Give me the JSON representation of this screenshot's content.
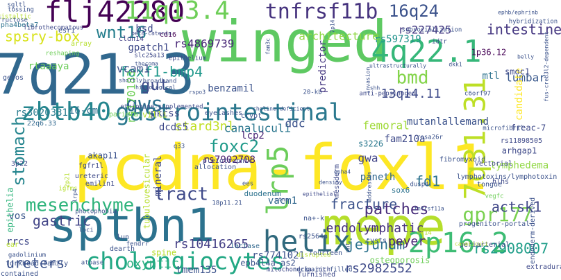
{
  "words": [
    {
      "text": "pcdna-foxl1",
      "color": "#fde725"
    },
    {
      "text": "winged",
      "color": "#5ec962"
    },
    {
      "text": "7q21.3",
      "color": "#31688e"
    },
    {
      "text": "mepe",
      "color": "#b5de2b"
    },
    {
      "text": "sptbn1",
      "color": "#2c728e"
    },
    {
      "text": "flj42280",
      "color": "#440154"
    },
    {
      "text": "gastrointestinal",
      "color": "#2a788e"
    },
    {
      "text": "4q22.1",
      "color": "#35b779"
    },
    {
      "text": "11q13.4",
      "color": "#6ece58"
    },
    {
      "text": "helix",
      "color": "#30697d"
    },
    {
      "text": "7q31.31",
      "color": "#bddf26"
    },
    {
      "text": "lrp5",
      "color": "#6ccd5a"
    },
    {
      "text": "2p16.2",
      "color": "#3dbc74"
    },
    {
      "text": "zbtb40",
      "color": "#24868e"
    },
    {
      "text": "cholangiocytes",
      "color": "#22a884"
    },
    {
      "text": "tnfrsf11b",
      "color": "#46337e"
    },
    {
      "text": "mesenchyme",
      "color": "#2fb47c"
    },
    {
      "text": "gws",
      "color": "#2d708e"
    },
    {
      "text": "gpr177",
      "color": "#7ad151"
    },
    {
      "text": "wnt16",
      "color": "#277f8e"
    },
    {
      "text": "16q24",
      "color": "#3b528b"
    },
    {
      "text": "stomach",
      "color": "#25858e"
    },
    {
      "text": "foxc2",
      "color": "#1f9a8a"
    },
    {
      "text": "tract",
      "color": "#3e4989"
    },
    {
      "text": "gut",
      "color": "#3e4a89"
    },
    {
      "text": "patches",
      "color": "#472c7a"
    },
    {
      "text": "bmd",
      "color": "#84d44b"
    },
    {
      "text": "jejunum",
      "color": "#2c728e"
    },
    {
      "text": "rs2908007",
      "color": "#1f9e89"
    },
    {
      "text": "endolymphatic",
      "color": "#46327e"
    },
    {
      "text": "fracture",
      "color": "#3b528b"
    },
    {
      "text": "actsk1",
      "color": "#404688"
    },
    {
      "text": "ureters",
      "color": "#3b528b"
    },
    {
      "text": "oxyntic",
      "color": "#29af7f"
    },
    {
      "text": "peyer",
      "color": "#482475"
    },
    {
      "text": "gastric",
      "color": "#414487"
    },
    {
      "text": "rs10416265",
      "color": "#433e85"
    },
    {
      "text": "fd1",
      "color": "#2c728e"
    },
    {
      "text": "spsry-box",
      "color": "#d8e219"
    },
    {
      "text": "intestine",
      "color": "#453781"
    },
    {
      "text": "foxf1-bmp4",
      "color": "#1f988b"
    },
    {
      "text": "13q14.11",
      "color": "#3e4a89"
    },
    {
      "text": "rs170183",
      "color": "#6ece58"
    },
    {
      "text": "stard3nl",
      "color": "#c0df25"
    },
    {
      "text": "rs4869739",
      "color": "#482777"
    },
    {
      "text": "rs597319",
      "color": "#20928c"
    },
    {
      "text": "rs2982552",
      "color": "#3e4a89"
    },
    {
      "text": "canaluculi",
      "color": "#2a768e"
    },
    {
      "text": "architecture",
      "color": "#8fd744"
    },
    {
      "text": "rs227425",
      "color": "#443a83"
    },
    {
      "text": "femoral",
      "color": "#a0da39"
    },
    {
      "text": "lumbar",
      "color": "#38588c"
    },
    {
      "text": "vcam1",
      "color": "#3c4f8a"
    },
    {
      "text": "gwa",
      "color": "#414487"
    },
    {
      "text": "ddc",
      "color": "#3b528b"
    },
    {
      "text": "mutanlallemand",
      "color": "#3b528b"
    },
    {
      "text": "lymphedema",
      "color": "#90d743"
    },
    {
      "text": "vacm1",
      "color": "#31688e"
    },
    {
      "text": "rs3020331",
      "color": "#287c8e"
    },
    {
      "text": "16-cm",
      "color": "#2d708e"
    },
    {
      "text": "predictor",
      "color": "#453781"
    },
    {
      "text": "mtl",
      "color": "#2c728e"
    },
    {
      "text": "tmem135",
      "color": "#3b528b"
    },
    {
      "text": "rs7741021",
      "color": "#3b528b"
    },
    {
      "text": "paneth",
      "color": "#31688e"
    },
    {
      "text": "rrcs",
      "color": "#3f4889"
    },
    {
      "text": "rtaaaya",
      "color": "#6ccd5a"
    },
    {
      "text": "fam210a",
      "color": "#3e4989"
    },
    {
      "text": "dcdc5",
      "color": "#3e4989"
    },
    {
      "text": "benzamil",
      "color": "#3b528b"
    },
    {
      "text": "pkcss",
      "color": "#3f4788"
    },
    {
      "text": "rs7902708",
      "color": "#481b6d"
    },
    {
      "text": "vos",
      "color": "#39558c"
    },
    {
      "text": "gpatch1",
      "color": "#3e4989"
    },
    {
      "text": "mineral",
      "color": "#3e4989"
    },
    {
      "text": "lcp2",
      "color": "#482475"
    },
    {
      "text": "freac-7",
      "color": "#3e4989"
    },
    {
      "text": "tubulovesicular",
      "color": "#b5de2b"
    },
    {
      "text": "candidate",
      "color": "#fde725"
    },
    {
      "text": "s3226",
      "color": "#2a788e"
    },
    {
      "text": "epb4l4a-as2",
      "color": "#3b528b"
    },
    {
      "text": "epithelia",
      "color": "#2fb47c"
    },
    {
      "text": "bsd",
      "color": "#3e4989"
    },
    {
      "text": "villi",
      "color": "#b5de2b"
    },
    {
      "text": "cldn14",
      "color": "#433e85"
    },
    {
      "text": "akap11",
      "color": "#3b528b"
    },
    {
      "text": "rs11898505",
      "color": "#3e4989"
    },
    {
      "text": "arhgap1",
      "color": "#3e4989"
    },
    {
      "text": "smoc1",
      "color": "#3e4989"
    },
    {
      "text": "1p36.12",
      "color": "#440154"
    },
    {
      "text": "gefos",
      "color": "#3b528b"
    },
    {
      "text": "esr1",
      "color": "#3b528b"
    },
    {
      "text": "cd16",
      "color": "#440154"
    },
    {
      "text": "sgltl",
      "color": "#3b528b"
    },
    {
      "text": "c6orf97",
      "color": "#3b528b"
    },
    {
      "text": "subsocialization",
      "color": "#3b528b"
    },
    {
      "text": "idtr",
      "color": "#3b528b"
    },
    {
      "text": "duodenum",
      "color": "#2c728e"
    },
    {
      "text": "sox6",
      "color": "#2c728e"
    },
    {
      "text": "fourteen",
      "color": "#3b528b"
    },
    {
      "text": "fgfr1l",
      "color": "#3e4989"
    },
    {
      "text": "ureteric",
      "color": "#3e4989"
    },
    {
      "text": "emilin1",
      "color": "#3e4989"
    },
    {
      "text": "gadolinium",
      "color": "#3b528b"
    },
    {
      "text": "spine",
      "color": "#b5de2b"
    },
    {
      "text": "lun",
      "color": "#3b528b"
    },
    {
      "text": "dearth",
      "color": "#3b528b"
    },
    {
      "text": "lactase",
      "color": "#31688e"
    },
    {
      "text": "osteoporosis",
      "color": "#6ece58"
    },
    {
      "text": "extradural",
      "color": "#3e4989"
    },
    {
      "text": "contained",
      "color": "#3b528b"
    },
    {
      "text": "furnished",
      "color": "#3e4989"
    },
    {
      "text": "periarterial",
      "color": "#3e4989"
    },
    {
      "text": "endoderm-derived",
      "color": "#3b528b"
    },
    {
      "text": "tongue",
      "color": "#3b528b"
    },
    {
      "text": "vectorial",
      "color": "#3e4989"
    },
    {
      "text": "hlhs",
      "color": "#3e4989"
    },
    {
      "text": "cysts",
      "color": "#3b528b"
    },
    {
      "text": "mesoderm",
      "color": "#3e4989"
    },
    {
      "text": "allocation",
      "color": "#3b528b"
    },
    {
      "text": "pleiotrophic",
      "color": "#3e4989"
    },
    {
      "text": "crypt",
      "color": "#3b528b"
    },
    {
      "text": "parietal",
      "color": "#6ece58"
    },
    {
      "text": "eyelashes",
      "color": "#3b528b"
    },
    {
      "text": "tossing",
      "color": "#3b528b"
    },
    {
      "text": "alpha4beta7",
      "color": "#2c728e"
    },
    {
      "text": "fibrothecomatous",
      "color": "#3e4989"
    },
    {
      "text": "array",
      "color": "#b5de2b"
    },
    {
      "text": "reshaping",
      "color": "#6ece58"
    },
    {
      "text": "epithelium",
      "color": "#3e4989"
    },
    {
      "text": "broadband",
      "color": "#3b528b"
    },
    {
      "text": "20-kb",
      "color": "#3b528b"
    },
    {
      "text": "anti-pepsinogen",
      "color": "#3e4989"
    },
    {
      "text": "ethionine-supplemented",
      "color": "#3e4989"
    },
    {
      "text": "22q6.33",
      "color": "#31688e"
    },
    {
      "text": "ear",
      "color": "#b5de2b"
    },
    {
      "text": "q33",
      "color": "#3b528b"
    },
    {
      "text": "3p22",
      "color": "#3e4989"
    },
    {
      "text": "fibromyxoid",
      "color": "#3b528b"
    },
    {
      "text": "lymphotoxins/lymphotoxin",
      "color": "#3b528b"
    },
    {
      "text": "photophobia",
      "color": "#3b528b"
    },
    {
      "text": "loci",
      "color": "#3b528b"
    },
    {
      "text": "fendrr",
      "color": "#3b528b"
    },
    {
      "text": "atpase",
      "color": "#3b528b"
    },
    {
      "text": "disrupted",
      "color": "#b5de2b"
    },
    {
      "text": "paint-filled",
      "color": "#3b528b"
    },
    {
      "text": "na+-k",
      "color": "#3b528b"
    },
    {
      "text": "18p11.21",
      "color": "#3b528b"
    },
    {
      "text": "forkhead-family",
      "color": "#3b528b"
    },
    {
      "text": "progenitor-portal",
      "color": "#3b528b"
    },
    {
      "text": "rs2564a",
      "color": "#3b528b"
    },
    {
      "text": "peristaltic",
      "color": "#b5de2b"
    },
    {
      "text": "d-fructose",
      "color": "#3b528b"
    },
    {
      "text": "beta-catenin",
      "color": "#3e4989"
    },
    {
      "text": "hybridization",
      "color": "#3b528b"
    },
    {
      "text": "microfibril",
      "color": "#3b528b"
    },
    {
      "text": "rosa26r",
      "color": "#3b528b"
    },
    {
      "text": "dusp4",
      "color": "#3b528b"
    },
    {
      "text": "mitochondria-rich",
      "color": "#3e4989"
    },
    {
      "text": "choline-deficient",
      "color": "#3b528b"
    },
    {
      "text": "shortly",
      "color": "#3b528b"
    },
    {
      "text": "thecoma",
      "color": "#3b528b"
    },
    {
      "text": "neck",
      "color": "#3b528b"
    },
    {
      "text": "sq14",
      "color": "#b5de2b"
    },
    {
      "text": "vegfc",
      "color": "#6ece58"
    },
    {
      "text": "fam3c",
      "color": "#3b528b"
    },
    {
      "text": "2p21",
      "color": "#b5de2b"
    },
    {
      "text": "igfms",
      "color": "#b5de2b"
    },
    {
      "text": "ees",
      "color": "#3b528b"
    },
    {
      "text": "density",
      "color": "#3b528b"
    },
    {
      "text": "rspo3",
      "color": "#3b528b"
    },
    {
      "text": "slc25a13",
      "color": "#3e4989"
    },
    {
      "text": "7p14",
      "color": "#3b528b"
    },
    {
      "text": "ultrastructurally",
      "color": "#3b528b"
    },
    {
      "text": "invasion",
      "color": "#3b528b"
    },
    {
      "text": "fus-creb3l2-dependent",
      "color": "#3b528b"
    },
    {
      "text": "belly",
      "color": "#3b528b"
    },
    {
      "text": "lrp4",
      "color": "#3b528b"
    },
    {
      "text": "addresses",
      "color": "#3b528b"
    },
    {
      "text": "histological",
      "color": "#3b528b"
    },
    {
      "text": "epithelial",
      "color": "#3e4989"
    },
    {
      "text": "wnt",
      "color": "#3b528b"
    },
    {
      "text": "ctnn",
      "color": "#3b528b"
    },
    {
      "text": "dkk1",
      "color": "#3b528b"
    },
    {
      "text": "shh",
      "color": "#3b528b"
    },
    {
      "text": "canaliculi",
      "color": "#b5de2b"
    },
    {
      "text": "tnfrsf11a",
      "color": "#3b528b"
    },
    {
      "text": "ephb/ephrinb",
      "color": "#3b528b"
    },
    {
      "text": "epha4",
      "color": "#3b528b"
    },
    {
      "text": "12q13.2",
      "color": "#b5de2b"
    },
    {
      "text": "ripply3",
      "color": "#3b528b"
    }
  ]
}
